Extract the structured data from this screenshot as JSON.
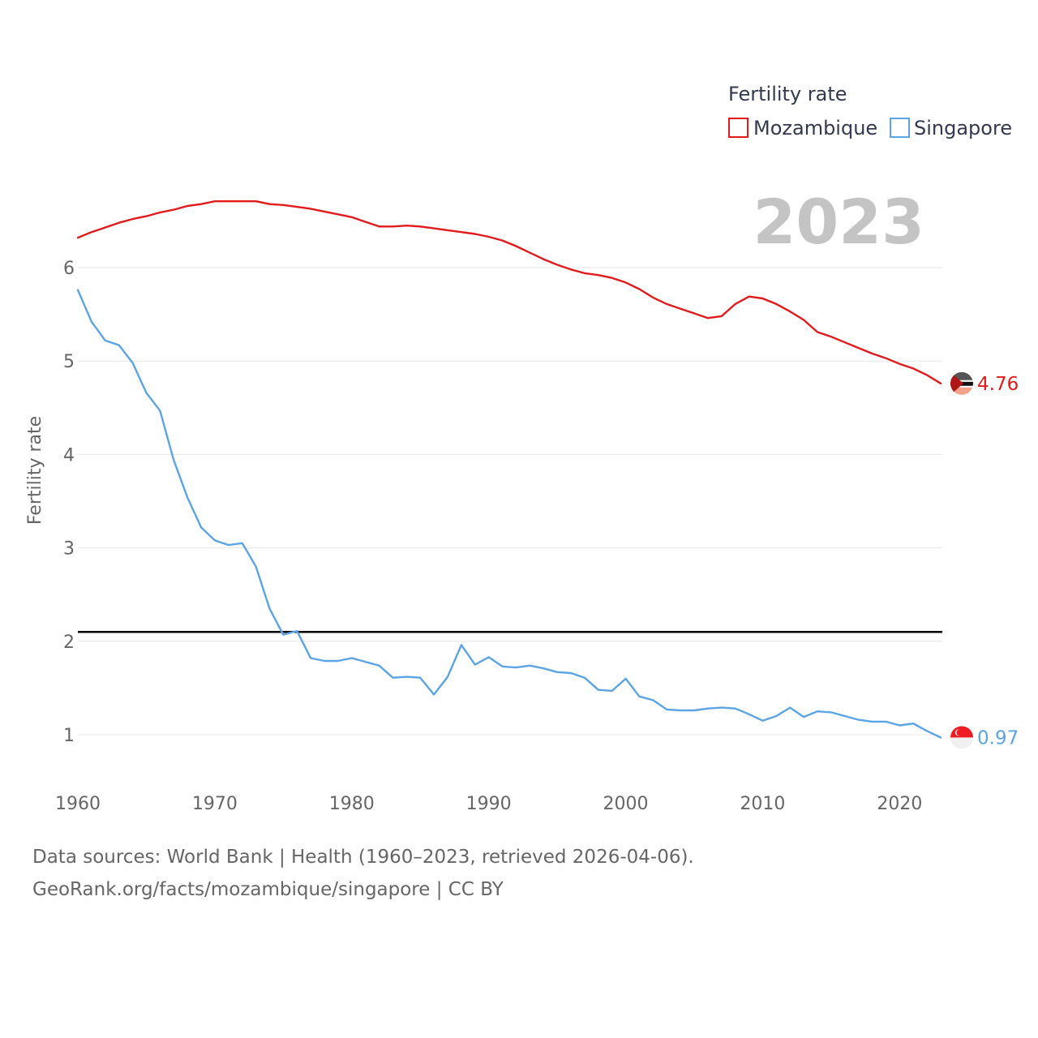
{
  "chart_data": {
    "type": "line",
    "legend_title": "Fertility rate",
    "year_label": "2023",
    "ylabel": "Fertility rate",
    "xlabel": "",
    "xlim": [
      1960,
      2023
    ],
    "ylim": [
      0.5,
      6.75
    ],
    "x_ticks": [
      1960,
      1970,
      1980,
      1990,
      2000,
      2010,
      2020
    ],
    "y_ticks": [
      1,
      2,
      3,
      4,
      5,
      6
    ],
    "reference_line": 2.1,
    "legend_position": "top-right",
    "x": [
      1960,
      1961,
      1962,
      1963,
      1964,
      1965,
      1966,
      1967,
      1968,
      1969,
      1970,
      1971,
      1972,
      1973,
      1974,
      1975,
      1976,
      1977,
      1978,
      1979,
      1980,
      1981,
      1982,
      1983,
      1984,
      1985,
      1986,
      1987,
      1988,
      1989,
      1990,
      1991,
      1992,
      1993,
      1994,
      1995,
      1996,
      1997,
      1998,
      1999,
      2000,
      2001,
      2002,
      2003,
      2004,
      2005,
      2006,
      2007,
      2008,
      2009,
      2010,
      2011,
      2012,
      2013,
      2014,
      2015,
      2016,
      2017,
      2018,
      2019,
      2020,
      2021,
      2022,
      2023
    ],
    "series": [
      {
        "name": "Mozambique",
        "color": "#e31a1c",
        "end_label": "4.76",
        "values": [
          6.32,
          6.38,
          6.43,
          6.48,
          6.52,
          6.55,
          6.59,
          6.62,
          6.66,
          6.68,
          6.71,
          6.71,
          6.71,
          6.71,
          6.68,
          6.67,
          6.65,
          6.63,
          6.6,
          6.57,
          6.54,
          6.49,
          6.44,
          6.44,
          6.45,
          6.44,
          6.42,
          6.4,
          6.38,
          6.36,
          6.33,
          6.29,
          6.23,
          6.16,
          6.09,
          6.03,
          5.98,
          5.94,
          5.92,
          5.89,
          5.84,
          5.77,
          5.68,
          5.61,
          5.56,
          5.51,
          5.46,
          5.48,
          5.61,
          5.69,
          5.67,
          5.61,
          5.53,
          5.44,
          5.31,
          5.26,
          5.2,
          5.14,
          5.08,
          5.03,
          4.97,
          4.92,
          4.85,
          4.76
        ]
      },
      {
        "name": "Singapore",
        "color": "#5ba4e5",
        "end_label": "0.97",
        "values": [
          5.76,
          5.42,
          5.22,
          5.17,
          4.98,
          4.66,
          4.47,
          3.94,
          3.54,
          3.22,
          3.08,
          3.03,
          3.05,
          2.8,
          2.35,
          2.07,
          2.11,
          1.82,
          1.79,
          1.79,
          1.82,
          1.78,
          1.74,
          1.61,
          1.62,
          1.61,
          1.43,
          1.62,
          1.96,
          1.75,
          1.83,
          1.73,
          1.72,
          1.74,
          1.71,
          1.67,
          1.66,
          1.61,
          1.48,
          1.47,
          1.6,
          1.41,
          1.37,
          1.27,
          1.26,
          1.26,
          1.28,
          1.29,
          1.28,
          1.22,
          1.15,
          1.2,
          1.29,
          1.19,
          1.25,
          1.24,
          1.2,
          1.16,
          1.14,
          1.14,
          1.1,
          1.12,
          1.04,
          0.97
        ]
      }
    ]
  },
  "footer": {
    "line1": "Data sources: World Bank | Health (1960–2023, retrieved 2026-04-06).",
    "line2": "GeoRank.org/facts/mozambique/singapore | CC BY"
  }
}
